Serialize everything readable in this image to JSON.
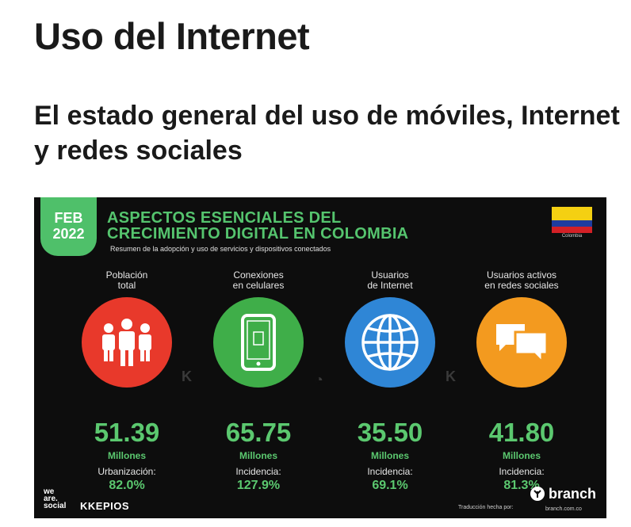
{
  "page": {
    "title": "Uso del Internet",
    "subtitle": "El estado general del uso de móviles, Internet y redes sociales"
  },
  "infographic": {
    "badge_month": "FEB",
    "badge_year": "2022",
    "title_line1": "ASPECTOS ESENCIALES DEL",
    "title_line2": "CRECIMIENTO DIGITAL EN COLOMBIA",
    "subtitle": "Resumen de la adopción y uso de servicios y dispositivos conectados",
    "flag_label": "Colombia",
    "stats": [
      {
        "label_line1": "Población",
        "label_line2": "total",
        "icon": "people-icon",
        "color": "#e8392b",
        "value": "51.39",
        "unit": "Millones",
        "metric_label": "Urbanización:",
        "metric_value": "82.0%"
      },
      {
        "label_line1": "Conexiones",
        "label_line2": "en celulares",
        "icon": "mobile-phone-icon",
        "color": "#3fae49",
        "value": "65.75",
        "unit": "Millones",
        "metric_label": "Incidencia:",
        "metric_value": "127.9%"
      },
      {
        "label_line1": "Usuarios",
        "label_line2": "de Internet",
        "icon": "globe-icon",
        "color": "#2f86d6",
        "value": "35.50",
        "unit": "Millones",
        "metric_label": "Incidencia:",
        "metric_value": "69.1%"
      },
      {
        "label_line1": "Usuarios activos",
        "label_line2": "en redes sociales",
        "icon": "chat-bubbles-icon",
        "color": "#f39a1f",
        "value": "41.80",
        "unit": "Millones",
        "metric_label": "Incidencia:",
        "metric_value": "81.3%"
      }
    ],
    "footer": {
      "we_are_social_1": "we",
      "we_are_social_2": "are.",
      "we_are_social_3": "social",
      "kepios": "KKEPIOS",
      "translation_note": "Traducción hecha por:",
      "branch_name": "branch",
      "branch_url": "branch.com.co"
    }
  }
}
